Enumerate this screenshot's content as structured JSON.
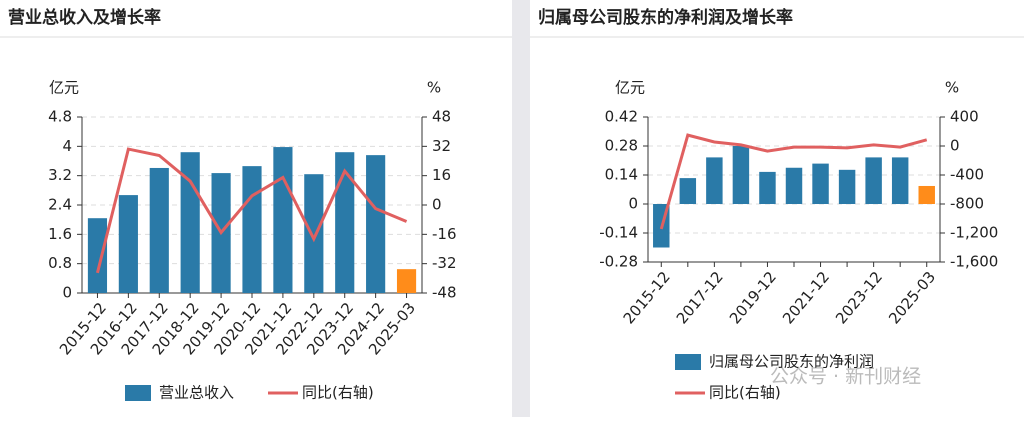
{
  "chart_data": [
    {
      "type": "combo",
      "title": "营业总收入及增长率",
      "y_unit": "亿元",
      "y2_unit": "%",
      "categories": [
        "2015-12",
        "2016-12",
        "2017-12",
        "2018-12",
        "2019-12",
        "2020-12",
        "2021-12",
        "2022-12",
        "2023-12",
        "2024-12",
        "2025-03"
      ],
      "series": [
        {
          "name": "营业总收入",
          "type": "bar",
          "color": "#2a7aa8",
          "colors": [
            "#2a7aa8",
            "#2a7aa8",
            "#2a7aa8",
            "#2a7aa8",
            "#2a7aa8",
            "#2a7aa8",
            "#2a7aa8",
            "#2a7aa8",
            "#2a7aa8",
            "#2a7aa8",
            "#ff8c1a"
          ],
          "values": [
            2.04,
            2.67,
            3.41,
            3.84,
            3.27,
            3.46,
            3.98,
            3.24,
            3.84,
            3.76,
            0.65
          ]
        },
        {
          "name": "同比(右轴)",
          "type": "line",
          "axis": "y2",
          "color": "#e06060",
          "values": [
            -37,
            30.5,
            27,
            13,
            -15,
            5,
            15,
            -18.5,
            18.5,
            -2,
            -9
          ]
        }
      ],
      "ylim": [
        0,
        4.8
      ],
      "yticks": [
        0,
        0.8,
        1.6,
        2.4,
        3.2,
        4,
        4.8
      ],
      "y2lim": [
        -48,
        48
      ],
      "y2ticks": [
        -48,
        -32,
        -16,
        0,
        16,
        32,
        48
      ],
      "grid": true
    },
    {
      "type": "combo",
      "title": "归属母公司股东的净利润及增长率",
      "y_unit": "亿元",
      "y2_unit": "%",
      "categories": [
        "2015-12",
        null,
        "2017-12",
        null,
        "2019-12",
        null,
        "2021-12",
        null,
        "2023-12",
        null,
        "2025-03"
      ],
      "series": [
        {
          "name": "归属母公司股东的净利润",
          "type": "bar",
          "color": "#2a7aa8",
          "colors": [
            "#2a7aa8",
            "#2a7aa8",
            "#2a7aa8",
            "#2a7aa8",
            "#2a7aa8",
            "#2a7aa8",
            "#2a7aa8",
            "#2a7aa8",
            "#2a7aa8",
            "#2a7aa8",
            "#ff8c1a"
          ],
          "values": [
            -0.21,
            0.125,
            0.225,
            0.28,
            0.155,
            0.175,
            0.195,
            0.165,
            0.225,
            0.225,
            0.087
          ]
        },
        {
          "name": "同比(右轴)",
          "type": "line",
          "axis": "y2",
          "color": "#e06060",
          "values": [
            -1145,
            150,
            55,
            15,
            -70,
            -15,
            -15,
            -25,
            15,
            -15,
            85
          ]
        }
      ],
      "ylim": [
        -0.28,
        0.42
      ],
      "yticks": [
        -0.28,
        -0.14,
        0,
        0.14,
        0.28,
        0.42
      ],
      "y2lim": [
        -1600,
        400
      ],
      "y2ticks": [
        {
          "value": -1600,
          "label": "-1,600"
        },
        {
          "value": -1200,
          "label": "-1,200"
        },
        -800,
        -400,
        0,
        400
      ],
      "grid": true
    }
  ],
  "watermark": "公众号 · 新刊财经"
}
